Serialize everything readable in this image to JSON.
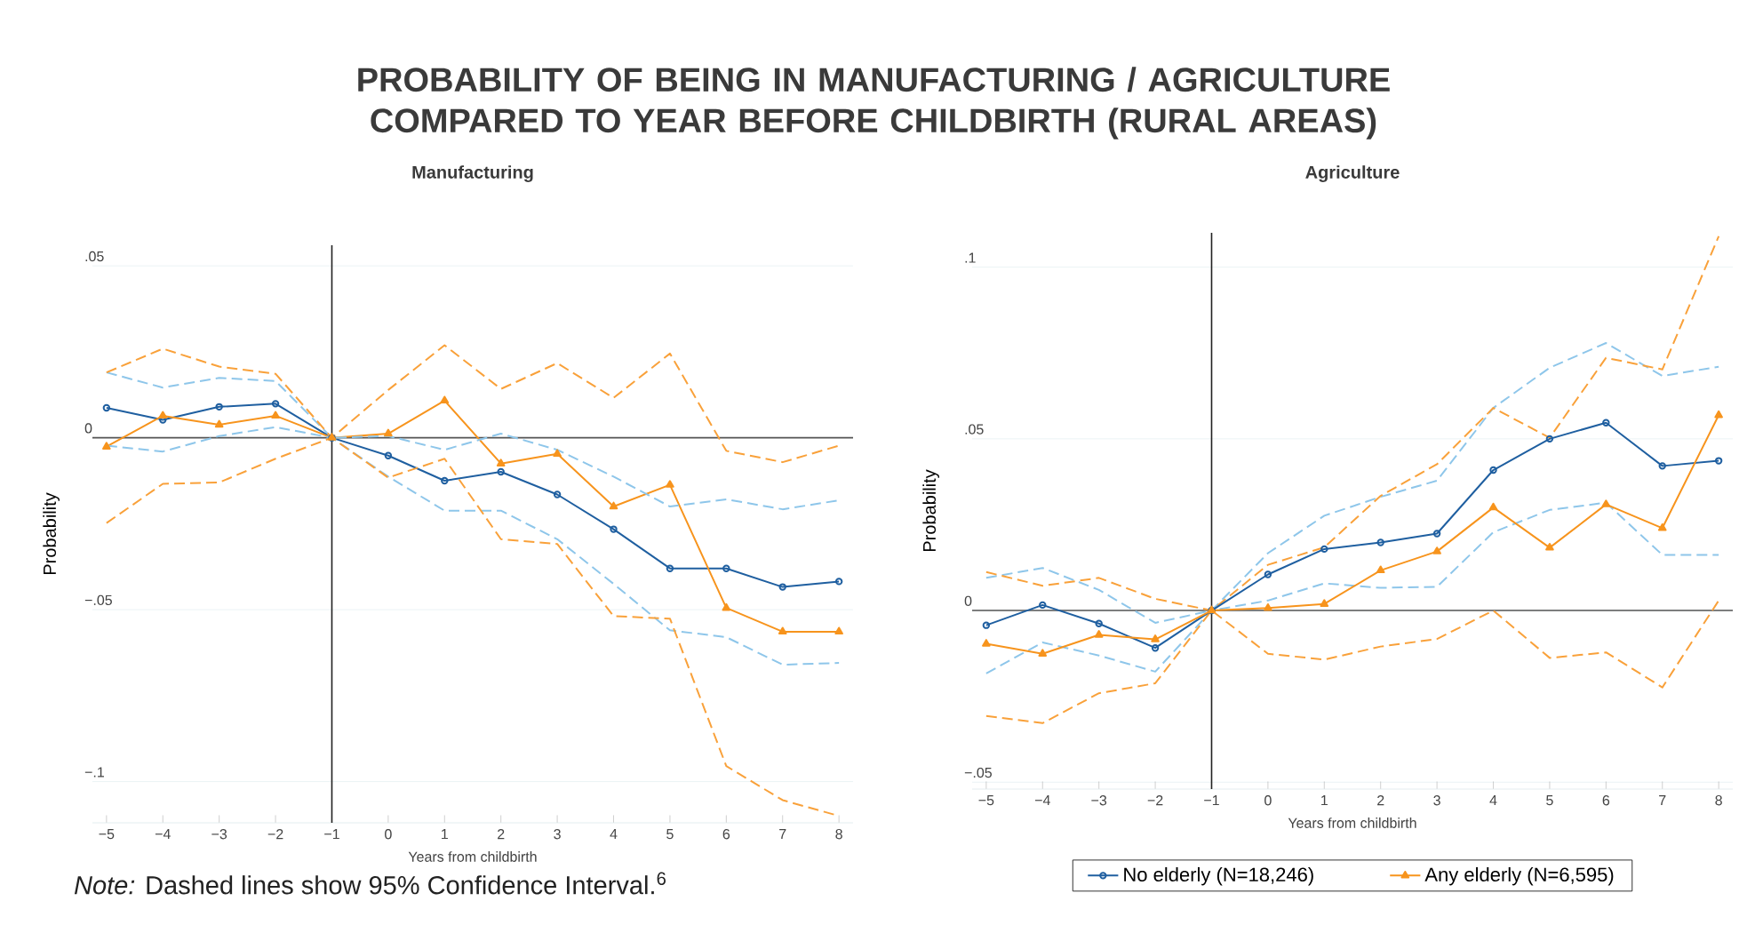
{
  "chart_data": [
    {
      "type": "other",
      "title": "PROBABILITY OF BEING IN MANUFACTURING / AGRICULTURE COMPARED TO YEAR BEFORE CHILDBIRTH (RURAL AREAS)"
    },
    {
      "type": "line",
      "title": "Manufacturing",
      "xlabel": "Years from childbirth",
      "ylabel": "Probability",
      "x": [
        -5,
        -4,
        -3,
        -2,
        -1,
        0,
        1,
        2,
        3,
        4,
        5,
        6,
        7,
        8
      ],
      "xlim": [
        -5.25,
        8.25
      ],
      "ylim": [
        -0.112,
        0.056
      ],
      "xticks": [
        {
          "value": -5,
          "label": "−5"
        },
        {
          "value": -4,
          "label": "−4"
        },
        {
          "value": -3,
          "label": "−3"
        },
        {
          "value": -2,
          "label": "−2"
        },
        {
          "value": -1,
          "label": "−1"
        },
        0,
        1,
        2,
        3,
        4,
        5,
        6,
        7,
        8
      ],
      "yticks": [
        {
          "value": -0.1,
          "label": "−.1"
        },
        {
          "value": -0.05,
          "label": "−.05"
        },
        0,
        {
          "value": 0.05,
          "label": ".05"
        }
      ],
      "grid": "y",
      "ref_lines": [
        {
          "axis": "y",
          "value": 0,
          "color": "#555555"
        },
        {
          "axis": "x",
          "value": -1,
          "color": "#222222"
        }
      ],
      "annotations": [
        "*Note:* Dashed lines show 95% Confidence Interval.$^{6}$"
      ],
      "series": [
        {
          "color": "#1f5fa0",
          "marker": "circle",
          "line_style": "solid",
          "values": [
            0.0087,
            0.0052,
            0.009,
            0.0099,
            0,
            -0.0052,
            -0.0125,
            -0.0099,
            -0.0165,
            -0.0266,
            -0.038,
            -0.038,
            -0.0434,
            -0.0418
          ]
        },
        {
          "color": "#f7941d",
          "marker": "triangle",
          "line_style": "solid",
          "values": [
            -0.0026,
            0.0064,
            0.0038,
            0.0064,
            0,
            0.0012,
            0.0108,
            -0.0075,
            -0.0047,
            -0.02,
            -0.0137,
            -0.0495,
            -0.0564,
            -0.0564
          ]
        },
        {
          "color": "#8ec6ea",
          "marker": "none",
          "line_style": "dashed",
          "values": [
            0.019,
            0.0146,
            0.0174,
            0.0165,
            0,
            0.0005,
            -0.0035,
            0.0012,
            -0.0035,
            -0.0113,
            -0.02,
            -0.0179,
            -0.0208,
            -0.0182
          ]
        },
        {
          "color": "#8ec6ea",
          "marker": "none",
          "line_style": "dashed",
          "values": [
            -0.0023,
            -0.004,
            0.0005,
            0.0031,
            0,
            -0.0113,
            -0.0212,
            -0.0212,
            -0.0295,
            -0.0425,
            -0.056,
            -0.058,
            -0.066,
            -0.0655
          ]
        },
        {
          "color": "#f9a13a",
          "marker": "none",
          "line_style": "dashed",
          "values": [
            0.019,
            0.0259,
            0.0207,
            0.0186,
            0,
            0.0139,
            0.0269,
            0.0142,
            0.0217,
            0.0116,
            0.0245,
            -0.0038,
            -0.0071,
            -0.0023
          ]
        },
        {
          "color": "#f9a13a",
          "marker": "none",
          "line_style": "dashed",
          "values": [
            -0.0248,
            -0.0134,
            -0.013,
            -0.0061,
            0,
            -0.0116,
            -0.0061,
            -0.0295,
            -0.0309,
            -0.0519,
            -0.0526,
            -0.0955,
            -0.1054,
            -0.11
          ]
        }
      ]
    },
    {
      "type": "line",
      "title": "Agriculture",
      "xlabel": "Years from childbirth",
      "ylabel": "Probability",
      "x": [
        -5,
        -4,
        -3,
        -2,
        -1,
        0,
        1,
        2,
        3,
        4,
        5,
        6,
        7,
        8
      ],
      "xlim": [
        -5.25,
        8.25
      ],
      "ylim": [
        -0.052,
        0.11
      ],
      "xticks": [
        {
          "value": -5,
          "label": "−5"
        },
        {
          "value": -4,
          "label": "−4"
        },
        {
          "value": -3,
          "label": "−3"
        },
        {
          "value": -2,
          "label": "−2"
        },
        {
          "value": -1,
          "label": "−1"
        },
        0,
        1,
        2,
        3,
        4,
        5,
        6,
        7,
        8
      ],
      "yticks": [
        {
          "value": -0.05,
          "label": "−.05"
        },
        0,
        {
          "value": 0.05,
          "label": ".05"
        },
        {
          "value": 0.1,
          "label": ".1"
        }
      ],
      "grid": "y",
      "legend": "bottom",
      "ref_lines": [
        {
          "axis": "y",
          "value": 0,
          "color": "#555555"
        },
        {
          "axis": "x",
          "value": -1,
          "color": "#222222"
        }
      ],
      "series": [
        {
          "name": "No elderly (N=18,246)",
          "color": "#1f5fa0",
          "marker": "circle",
          "line_style": "solid",
          "values": [
            -0.0043,
            0.0016,
            -0.0038,
            -0.0109,
            0,
            0.0105,
            0.0179,
            0.0198,
            0.0224,
            0.0409,
            0.05,
            0.0547,
            0.0421,
            0.0436
          ]
        },
        {
          "name": "Any elderly (N=6,595)",
          "color": "#f7941d",
          "marker": "triangle",
          "line_style": "solid",
          "values": [
            -0.0097,
            -0.0126,
            -0.0071,
            -0.0084,
            0,
            0.0007,
            0.0019,
            0.0117,
            0.0172,
            0.03,
            0.0183,
            0.0309,
            0.024,
            0.0569
          ]
        },
        {
          "color": "#8ec6ea",
          "marker": "none",
          "line_style": "dashed",
          "values": [
            0.0095,
            0.0124,
            0.006,
            -0.0036,
            0,
            0.0167,
            0.0276,
            0.0331,
            0.0378,
            0.059,
            0.0707,
            0.0779,
            0.0683,
            0.071
          ]
        },
        {
          "color": "#8ec6ea",
          "marker": "none",
          "line_style": "dashed",
          "values": [
            -0.0183,
            -0.0093,
            -0.0131,
            -0.0178,
            0,
            0.0029,
            0.0079,
            0.0066,
            0.0069,
            0.0228,
            0.0293,
            0.0314,
            0.0162,
            0.0162
          ]
        },
        {
          "color": "#f9a13a",
          "marker": "none",
          "line_style": "dashed",
          "values": [
            0.0112,
            0.0072,
            0.0095,
            0.0034,
            0,
            0.0133,
            0.0184,
            0.0334,
            0.0426,
            0.059,
            0.0503,
            0.0736,
            0.0702,
            0.109
          ]
        },
        {
          "color": "#f9a13a",
          "marker": "none",
          "line_style": "dashed",
          "values": [
            -0.0307,
            -0.0328,
            -0.0241,
            -0.0212,
            0,
            -0.0126,
            -0.0143,
            -0.0105,
            -0.0083,
            0,
            -0.0138,
            -0.0122,
            -0.0224,
            0.0029
          ]
        }
      ]
    }
  ]
}
